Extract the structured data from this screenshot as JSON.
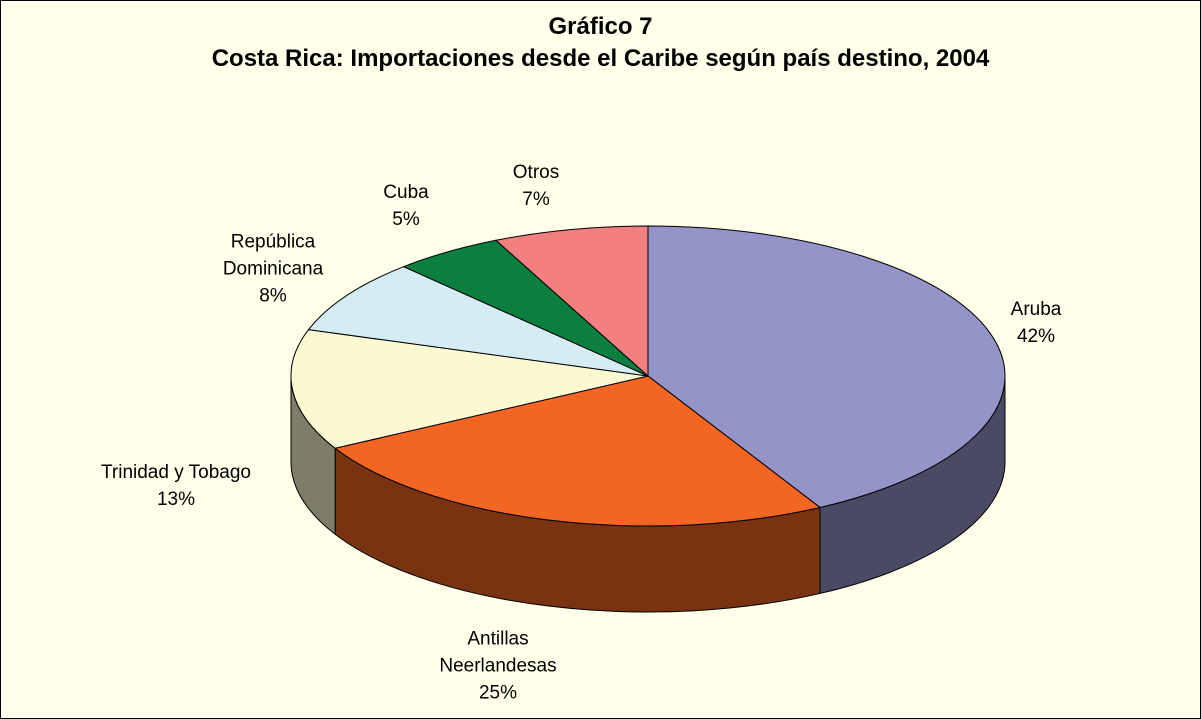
{
  "chart_data": {
    "type": "pie3d",
    "title": "Gráfico 7",
    "subtitle": "Costa Rica: Importaciones desde el Caribe según país destino, 2004",
    "categories": [
      "Aruba",
      "Antillas Neerlandesas",
      "Trinidad y Tobago",
      "República Dominicana",
      "Cuba",
      "Otros"
    ],
    "values": [
      42,
      25,
      13,
      8,
      5,
      7
    ],
    "value_labels": [
      "42%",
      "25%",
      "13%",
      "8%",
      "5%",
      "7%"
    ],
    "colors": [
      "#9494c8",
      "#f26522",
      "#fbf9d2",
      "#d5ecf5",
      "#0b7f3f",
      "#f28080"
    ]
  }
}
